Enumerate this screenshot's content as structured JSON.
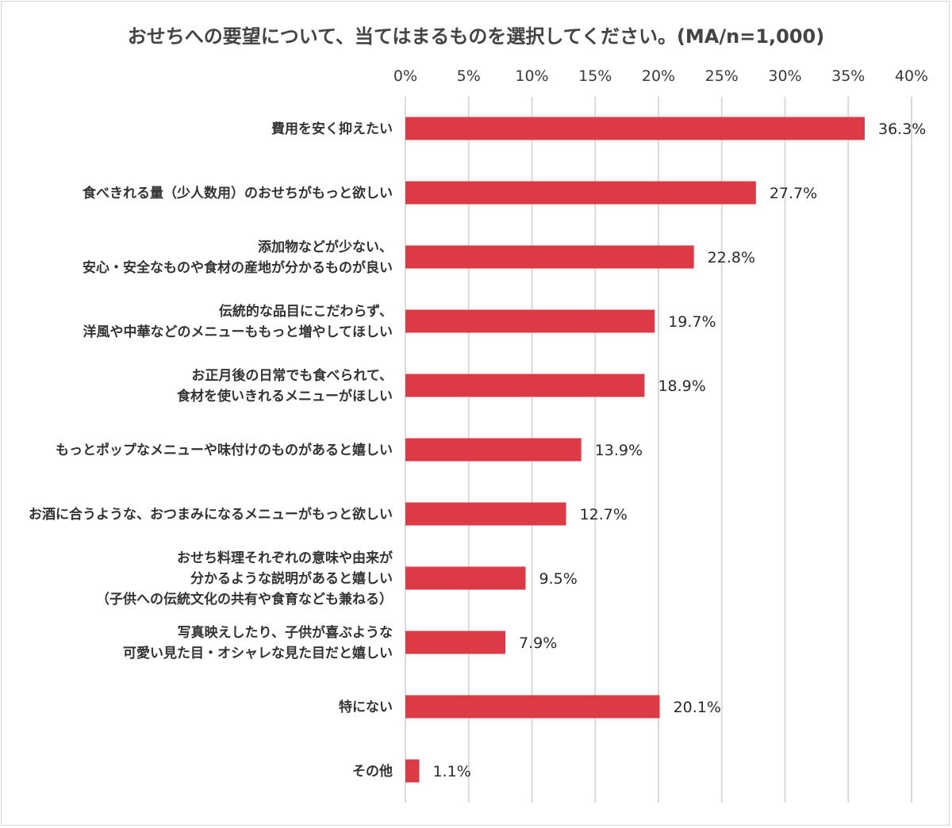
{
  "chart_data": {
    "type": "bar",
    "orientation": "horizontal",
    "title": "おせちへの要望について、当てはまるものを選択してください。(MA/n=1,000)",
    "xlim": [
      0,
      40
    ],
    "ticks": [
      "0%",
      "5%",
      "10%",
      "15%",
      "20%",
      "25%",
      "30%",
      "35%",
      "40%"
    ],
    "tick_values": [
      0,
      5,
      10,
      15,
      20,
      25,
      30,
      35,
      40
    ],
    "grid": true,
    "categories": [
      [
        "費用を安く抑えたい"
      ],
      [
        "食べきれる量（少人数用）のおせちがもっと欲しい"
      ],
      [
        "添加物などが少ない、",
        "安心・安全なものや食材の産地が分かるものが良い"
      ],
      [
        "伝統的な品目にこだわらず、",
        "洋風や中華などのメニューももっと増やしてほしい"
      ],
      [
        "お正月後の日常でも食べられて、",
        "食材を使いきれるメニューがほしい"
      ],
      [
        "もっとポップなメニューや味付けのものがあると嬉しい"
      ],
      [
        "お酒に合うような、おつまみになるメニューがもっと欲しい"
      ],
      [
        "おせち料理それぞれの意味や由来が",
        "分かるような説明があると嬉しい",
        "（子供への伝統文化の共有や食育なども兼ねる）"
      ],
      [
        "写真映えしたり、子供が喜ぶような",
        "可愛い見た目・オシャレな見た目だと嬉しい"
      ],
      [
        "特にない"
      ],
      [
        "その他"
      ]
    ],
    "values": [
      36.3,
      27.7,
      22.8,
      19.7,
      18.9,
      13.9,
      12.7,
      9.5,
      7.9,
      20.1,
      1.1
    ],
    "value_labels": [
      "36.3%",
      "27.7%",
      "22.8%",
      "19.7%",
      "18.9%",
      "13.9%",
      "12.7%",
      "9.5%",
      "7.9%",
      "20.1%",
      "1.1%"
    ],
    "bar_color": "#dc3a44",
    "grid_color": "#d9d9d9"
  }
}
